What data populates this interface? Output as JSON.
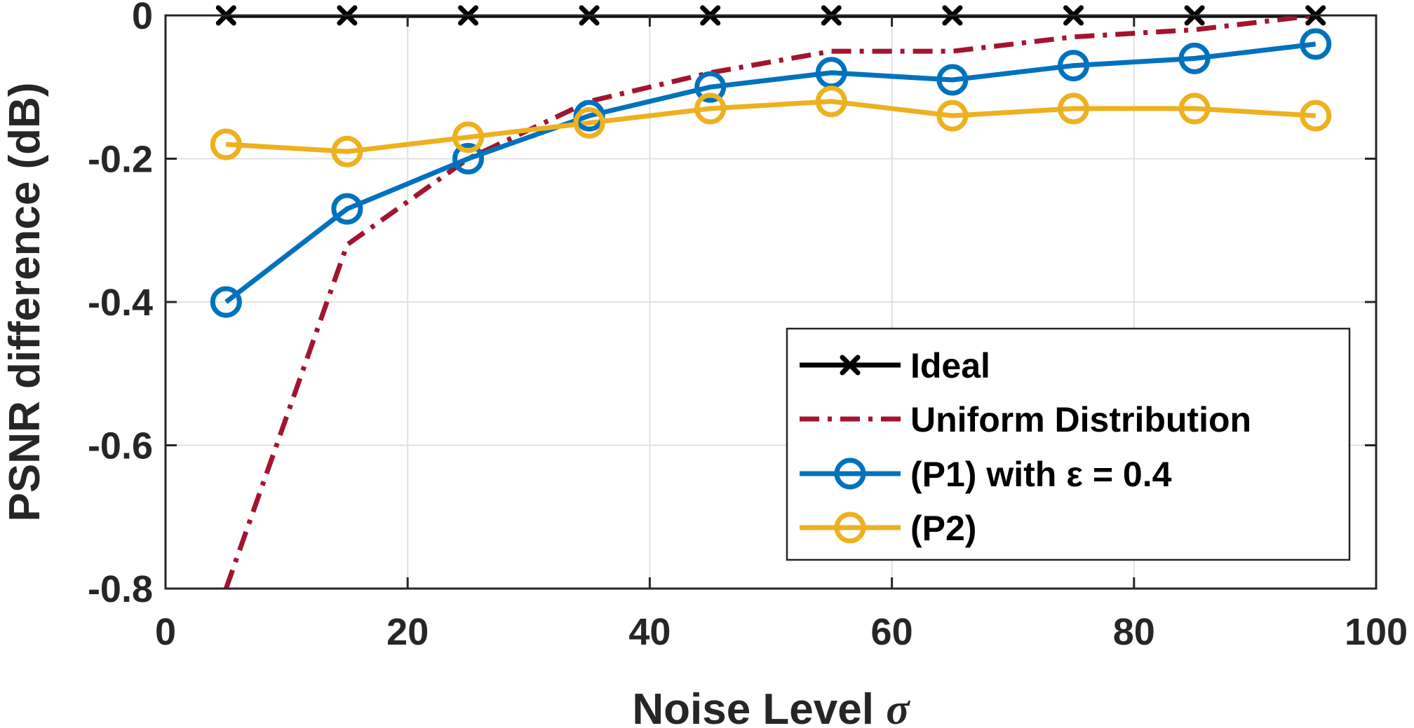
{
  "chart_data": {
    "type": "line",
    "title": "",
    "xlabel": "Noise Level",
    "xlabel_symbol": "σ",
    "ylabel": "PSNR difference (dB)",
    "xlim": [
      0,
      100
    ],
    "ylim": [
      -0.8,
      0
    ],
    "xticks": [
      0,
      20,
      40,
      60,
      80,
      100
    ],
    "xtick_labels": [
      "0",
      "20",
      "40",
      "60",
      "80",
      "100"
    ],
    "yticks": [
      0,
      -0.2,
      -0.4,
      -0.6,
      -0.8
    ],
    "ytick_labels": [
      "0",
      "-0.2",
      "-0.4",
      "-0.6",
      "-0.8"
    ],
    "grid": true,
    "legend_position": "bottom-right",
    "x": [
      5,
      15,
      25,
      35,
      45,
      55,
      65,
      75,
      85,
      95
    ],
    "series": [
      {
        "name": "Ideal",
        "values": [
          0,
          0,
          0,
          0,
          0,
          0,
          0,
          0,
          0,
          0
        ],
        "color": "#000000",
        "line_style": "solid",
        "marker": "x"
      },
      {
        "name": "Uniform Distribution",
        "values": [
          -0.8,
          -0.32,
          -0.2,
          -0.12,
          -0.08,
          -0.05,
          -0.05,
          -0.03,
          -0.02,
          0
        ],
        "color": "#A2142F",
        "line_style": "dash-dot",
        "marker": "none"
      },
      {
        "name": "(P1) with ε = 0.4",
        "values": [
          -0.4,
          -0.27,
          -0.2,
          -0.14,
          -0.1,
          -0.08,
          -0.09,
          -0.07,
          -0.06,
          -0.04
        ],
        "color": "#0072BD",
        "line_style": "solid",
        "marker": "circle"
      },
      {
        "name": "(P2)",
        "values": [
          -0.18,
          -0.19,
          -0.17,
          -0.15,
          -0.13,
          -0.12,
          -0.14,
          -0.13,
          -0.13,
          -0.14
        ],
        "color": "#EDB120",
        "line_style": "solid",
        "marker": "circle"
      }
    ]
  }
}
